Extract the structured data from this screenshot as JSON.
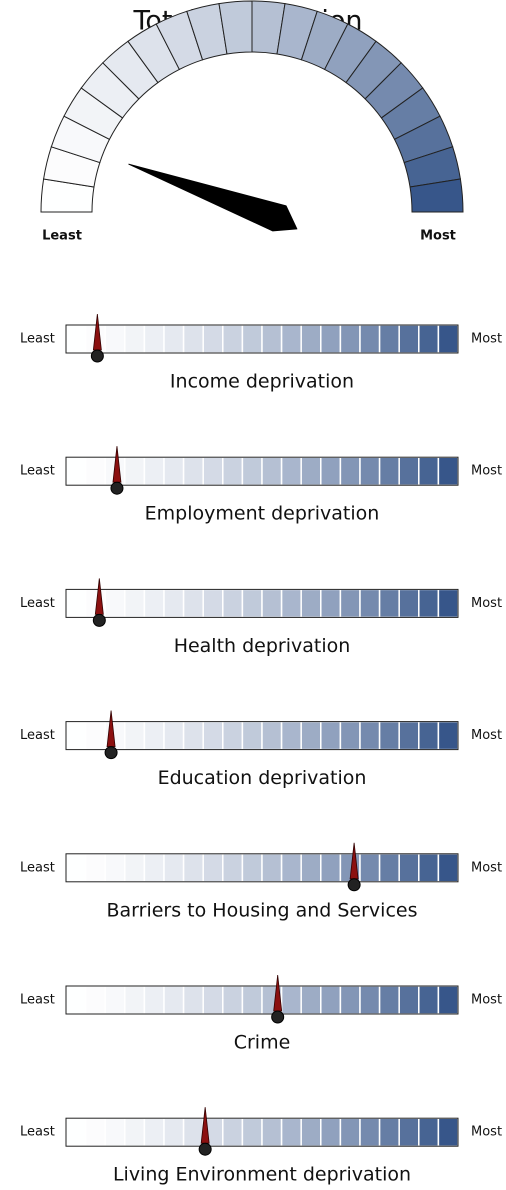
{
  "chart_data": [
    {
      "type": "gauge",
      "title": "Total Deprivation",
      "value": 11,
      "range": [
        0,
        100
      ],
      "min_label": "Least",
      "max_label": "Most",
      "color_range": [
        "#ffffff",
        "#2f4f85"
      ]
    },
    {
      "type": "slider",
      "title": "Income deprivation",
      "value": 8,
      "range": [
        0,
        100
      ],
      "min_label": "Least",
      "max_label": "Most",
      "color_range": [
        "#ffffff",
        "#2f4f85"
      ]
    },
    {
      "type": "slider",
      "title": "Employment deprivation",
      "value": 13,
      "range": [
        0,
        100
      ],
      "min_label": "Least",
      "max_label": "Most",
      "color_range": [
        "#ffffff",
        "#2f4f85"
      ]
    },
    {
      "type": "slider",
      "title": "Health deprivation",
      "value": 8.5,
      "range": [
        0,
        100
      ],
      "min_label": "Least",
      "max_label": "Most",
      "color_range": [
        "#ffffff",
        "#2f4f85"
      ]
    },
    {
      "type": "slider",
      "title": "Education deprivation",
      "value": 11.5,
      "range": [
        0,
        100
      ],
      "min_label": "Least",
      "max_label": "Most",
      "color_range": [
        "#ffffff",
        "#2f4f85"
      ]
    },
    {
      "type": "slider",
      "title": "Barriers to Housing and Services",
      "value": 73.5,
      "range": [
        0,
        100
      ],
      "min_label": "Least",
      "max_label": "Most",
      "color_range": [
        "#ffffff",
        "#2f4f85"
      ]
    },
    {
      "type": "slider",
      "title": "Crime",
      "value": 54,
      "range": [
        0,
        100
      ],
      "min_label": "Least",
      "max_label": "Most",
      "color_range": [
        "#ffffff",
        "#2f4f85"
      ]
    },
    {
      "type": "slider",
      "title": "Living Environment deprivation",
      "value": 35.5,
      "range": [
        0,
        100
      ],
      "min_label": "Least",
      "max_label": "Most",
      "color_range": [
        "#ffffff",
        "#2f4f85"
      ]
    }
  ]
}
